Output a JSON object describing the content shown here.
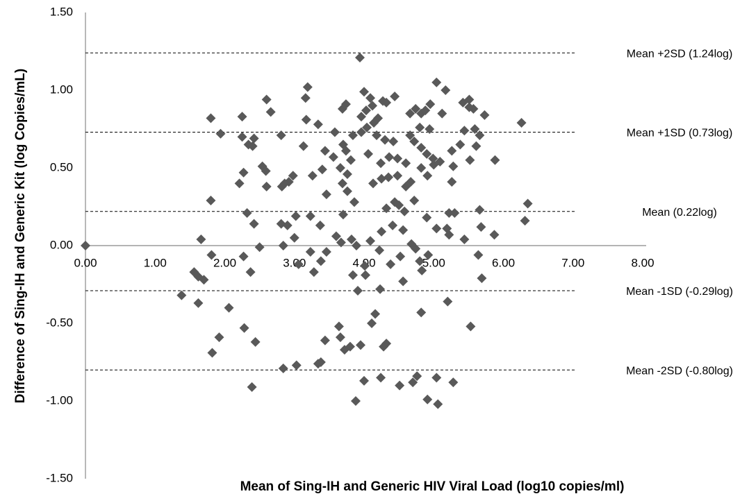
{
  "chart_data": {
    "type": "scatter",
    "y_label": "Difference of Sing-IH and Generic Kit (log Copies/mL)",
    "x_label": "Mean of Sing-IH and Generic HIV Viral Load (log10 copies/ml)",
    "color": "#595959",
    "xlim": [
      0,
      8
    ],
    "ylim": [
      -1.5,
      1.5
    ],
    "xticks": [
      {
        "value": 0,
        "label": "0.00"
      },
      {
        "value": 1,
        "label": "1.00"
      },
      {
        "value": 2,
        "label": "2.00"
      },
      {
        "value": 3,
        "label": "3.00"
      },
      {
        "value": 4,
        "label": "4.00"
      },
      {
        "value": 5,
        "label": "5.00"
      },
      {
        "value": 6,
        "label": "6.00"
      },
      {
        "value": 7,
        "label": "7.00"
      },
      {
        "value": 8,
        "label": "8.00"
      }
    ],
    "yticks": [
      {
        "value": 1.5,
        "label": "1.50"
      },
      {
        "value": 1,
        "label": "1.00"
      },
      {
        "value": 0.5,
        "label": "0.50"
      },
      {
        "value": 0,
        "label": "0.00"
      },
      {
        "value": -0.5,
        "label": "-0.50"
      },
      {
        "value": -1,
        "label": "-1.00"
      },
      {
        "value": -1.5,
        "label": "-1.50"
      }
    ],
    "ref_lines": [
      {
        "value": 1.24,
        "label": "Mean +2SD (1.24log)"
      },
      {
        "value": 0.73,
        "label": "Mean +1SD (0.73log)"
      },
      {
        "value": 0.22,
        "label": "Mean  (0.22log)"
      },
      {
        "value": -0.29,
        "label": "Mean -1SD  (-0.29log)"
      },
      {
        "value": -0.8,
        "label": "Mean -2SD  (-0.80log)"
      }
    ],
    "x": [
      0,
      1.8,
      2.25,
      2.6,
      2.66,
      1.94,
      2.25,
      2.34,
      2.42,
      2.4,
      2.27,
      2.21,
      2.54,
      2.59,
      2.6,
      2.81,
      3.19,
      3.16,
      3.17,
      3.34,
      3.13,
      2.98,
      2.92,
      2.82,
      2.86,
      1.8,
      2.32,
      2.42,
      1.66,
      1.81,
      2.27,
      2.37,
      3.02,
      2.81,
      2.9,
      3.0,
      2.84,
      3.06,
      3.37,
      3.46,
      3.44,
      3.4,
      3.26,
      3.56,
      3.58,
      3.69,
      3.74,
      3.94,
      4.0,
      4.09,
      4.12,
      4.03,
      4.27,
      4.32,
      4.44,
      4.74,
      4.82,
      4.88,
      4.95,
      5.04,
      5.17,
      5.12,
      5.42,
      5.51,
      5.57,
      5.73,
      6.26,
      5.88,
      6.35,
      6.31,
      5.87,
      5.68,
      5.66,
      5.64,
      5.69,
      5.53,
      5.59,
      5.66,
      5.61,
      5.52,
      5.44,
      5.38,
      5.26,
      5.28,
      5.26,
      5.3,
      5.19,
      5.04,
      5.22,
      5.44,
      4.92,
      4.8,
      4.83,
      4.68,
      4.74,
      4.52,
      4.38,
      4.56,
      4.23,
      4.01,
      3.84,
      4.02,
      3.91,
      3.28,
      3.38,
      3.23,
      3.46,
      3.6,
      3.67,
      3.82,
      3.89,
      4.09,
      4.25,
      4.22,
      4.41,
      4.32,
      4.44,
      4.5,
      4.58,
      4.72,
      5.0,
      4.82,
      4.91,
      4.67,
      4.6,
      4.48,
      4.35,
      4.25,
      4.13,
      4.24,
      4.36,
      4.48,
      4.6,
      4.72,
      4.82,
      4.9,
      4.99,
      5.09,
      4.94,
      4.8,
      4.66,
      4.42,
      4.3,
      4.18,
      4.14,
      4.04,
      3.96,
      3.84,
      3.7,
      3.74,
      3.81,
      4.06,
      3.76,
      3.69,
      3.76,
      3.86,
      3.7,
      3.64,
      3.66,
      3.44,
      3.72,
      3.8,
      3.95,
      4.11,
      4.16,
      4.32,
      4.28,
      3.38,
      3.34,
      3.03,
      2.84,
      2.39,
      2.44,
      2.28,
      1.92,
      1.82,
      2.06,
      1.62,
      1.38,
      1.56,
      1.62,
      1.7,
      4.0,
      3.88,
      4.24,
      4.51,
      4.7,
      4.76,
      4.82,
      4.91,
      5.06,
      5.04,
      5.28,
      5.2,
      4.56,
      4.9,
      5.22,
      3.96,
      4.2,
      3.66,
      3.23,
      2.5,
      4.66,
      5.51
    ],
    "y": [
      0,
      0.82,
      0.83,
      0.94,
      0.86,
      0.72,
      0.7,
      0.65,
      0.69,
      0.64,
      0.47,
      0.4,
      0.51,
      0.48,
      0.38,
      0.71,
      1.02,
      0.95,
      0.81,
      0.78,
      0.64,
      0.45,
      0.41,
      0.38,
      0.4,
      0.29,
      0.21,
      0.14,
      0.04,
      -0.06,
      -0.07,
      -0.17,
      0.19,
      0.14,
      0.13,
      0.05,
      0,
      -0.12,
      0.13,
      0.33,
      0.61,
      0.49,
      0.45,
      0.57,
      0.73,
      0.88,
      0.91,
      1.21,
      0.99,
      0.95,
      0.9,
      0.87,
      0.93,
      0.92,
      0.96,
      0.88,
      0.85,
      0.87,
      0.91,
      1.05,
      1.0,
      0.85,
      0.92,
      0.94,
      0.88,
      0.84,
      0.79,
      0.55,
      0.27,
      0.16,
      0.07,
      0.12,
      0.23,
      -0.06,
      -0.21,
      -0.52,
      0.75,
      0.71,
      0.64,
      0.55,
      0.74,
      0.65,
      0.61,
      0.51,
      0.41,
      0.21,
      0.11,
      0.11,
      0.07,
      0.04,
      -0.06,
      -0.1,
      -0.16,
      0.01,
      -0.02,
      -0.07,
      -0.12,
      -0.23,
      -0.28,
      -0.13,
      -0.19,
      -0.19,
      -0.29,
      -0.17,
      -0.1,
      -0.04,
      -0.04,
      0.06,
      0.02,
      0.04,
      0,
      0.03,
      0.09,
      -0.03,
      0.13,
      0.24,
      0.28,
      0.26,
      0.22,
      0.29,
      0.52,
      0.5,
      0.45,
      0.41,
      0.38,
      0.45,
      0.44,
      0.43,
      0.4,
      0.53,
      0.57,
      0.56,
      0.53,
      0.67,
      0.63,
      0.59,
      0.56,
      0.54,
      0.75,
      0.76,
      0.71,
      0.67,
      0.68,
      0.71,
      0.79,
      0.76,
      0.73,
      0.71,
      0.65,
      0.61,
      0.55,
      0.59,
      0.46,
      0.4,
      0.35,
      0.28,
      0.2,
      -0.52,
      -0.59,
      -0.61,
      -0.67,
      -0.65,
      -0.64,
      -0.5,
      -0.44,
      -0.63,
      -0.65,
      -0.75,
      -0.76,
      -0.77,
      -0.79,
      -0.91,
      -0.62,
      -0.53,
      -0.59,
      -0.69,
      -0.4,
      -0.37,
      -0.32,
      -0.17,
      -0.2,
      -0.22,
      -0.87,
      -1.0,
      -0.85,
      -0.9,
      -0.88,
      -0.84,
      -0.43,
      -0.99,
      -1.02,
      -0.85,
      -0.88,
      -0.36,
      0.1,
      0.18,
      0.21,
      0.83,
      0.82,
      0.5,
      0.19,
      -0.01,
      0.85,
      0.89
    ]
  }
}
